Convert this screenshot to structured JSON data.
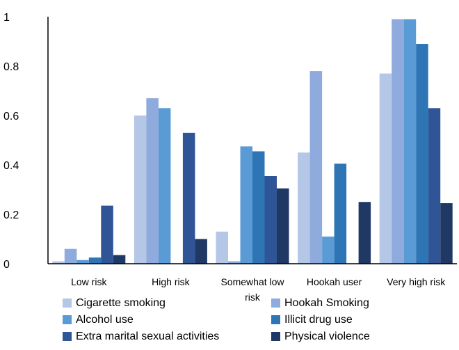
{
  "chart_data": {
    "type": "bar",
    "categories": [
      "Low risk",
      "High risk",
      "Somewhat low risk",
      "Hookah user",
      "Very high risk"
    ],
    "series": [
      {
        "name": "Cigarette smoking",
        "color": "#b4c7e7",
        "values": [
          0.01,
          0.6,
          0.13,
          0.45,
          0.77
        ]
      },
      {
        "name": "Hookah Smoking",
        "color": "#8faadc",
        "values": [
          0.06,
          0.67,
          0.01,
          0.78,
          0.99
        ]
      },
      {
        "name": "Alcohol use",
        "color": "#5b9bd5",
        "values": [
          0.015,
          0.63,
          0.475,
          0.11,
          0.99
        ]
      },
      {
        "name": "Illicit drug use",
        "color": "#2e75b6",
        "values": [
          0.025,
          0.0,
          0.455,
          0.405,
          0.89
        ]
      },
      {
        "name": "Extra marital sexual activities",
        "color": "#2f5597",
        "values": [
          0.235,
          0.53,
          0.355,
          0.0,
          0.63
        ]
      },
      {
        "name": "Physical violence",
        "color": "#203864",
        "values": [
          0.035,
          0.1,
          0.305,
          0.25,
          0.245
        ]
      }
    ],
    "yticks": [
      "0",
      "0.2",
      "0.4",
      "0.6",
      "0.8",
      "1"
    ],
    "ylim": [
      0,
      1
    ],
    "grid": false,
    "legend_position": "bottom"
  }
}
